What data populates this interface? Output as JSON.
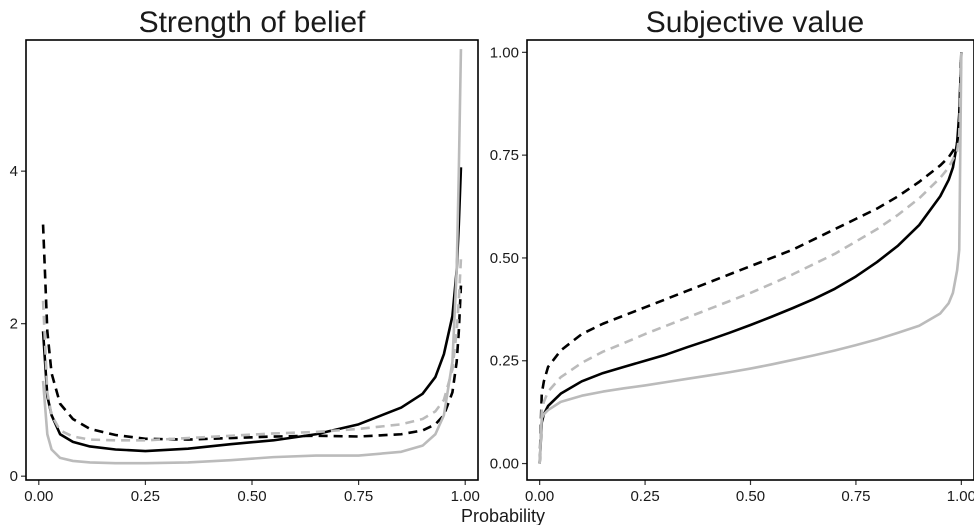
{
  "xlabel": "Probability",
  "chart_data": [
    {
      "type": "line",
      "title": "Strength of belief",
      "xlabel": "",
      "ylabel": "",
      "xlim": [
        -0.03,
        1.03
      ],
      "ylim": [
        -0.05,
        5.72
      ],
      "x_ticks": [
        0.0,
        0.25,
        0.5,
        0.75,
        1.0
      ],
      "x_tick_labels": [
        "0.00",
        "0.25",
        "0.50",
        "0.75",
        "1.00"
      ],
      "y_ticks": [
        0,
        2,
        4
      ],
      "y_tick_labels": [
        "0",
        "2",
        "4"
      ],
      "grid": false,
      "legend": "none",
      "series": [
        {
          "style": {
            "color": "#000000",
            "dash": "solid"
          },
          "x": [
            0.01,
            0.02,
            0.03,
            0.05,
            0.08,
            0.12,
            0.18,
            0.25,
            0.35,
            0.45,
            0.55,
            0.65,
            0.75,
            0.85,
            0.9,
            0.93,
            0.95,
            0.97,
            0.98,
            0.985,
            0.99
          ],
          "y": [
            1.9,
            1.05,
            0.8,
            0.55,
            0.45,
            0.39,
            0.35,
            0.33,
            0.36,
            0.42,
            0.47,
            0.55,
            0.68,
            0.9,
            1.08,
            1.3,
            1.6,
            2.1,
            2.7,
            3.3,
            4.05
          ]
        },
        {
          "style": {
            "color": "#000000",
            "dash": "dashed"
          },
          "x": [
            0.01,
            0.02,
            0.03,
            0.05,
            0.08,
            0.12,
            0.18,
            0.25,
            0.35,
            0.45,
            0.55,
            0.65,
            0.75,
            0.85,
            0.9,
            0.93,
            0.95,
            0.97,
            0.98,
            0.985,
            0.99
          ],
          "y": [
            3.3,
            1.9,
            1.35,
            0.95,
            0.75,
            0.62,
            0.54,
            0.49,
            0.48,
            0.5,
            0.52,
            0.53,
            0.52,
            0.55,
            0.6,
            0.68,
            0.8,
            1.1,
            1.5,
            1.9,
            2.5
          ]
        },
        {
          "style": {
            "color": "#bbbbbb",
            "dash": "solid"
          },
          "x": [
            0.01,
            0.02,
            0.03,
            0.05,
            0.08,
            0.12,
            0.18,
            0.25,
            0.35,
            0.45,
            0.55,
            0.65,
            0.75,
            0.85,
            0.9,
            0.93,
            0.95,
            0.97,
            0.98,
            0.985,
            0.99
          ],
          "y": [
            1.25,
            0.55,
            0.35,
            0.24,
            0.2,
            0.18,
            0.17,
            0.17,
            0.18,
            0.21,
            0.25,
            0.27,
            0.27,
            0.32,
            0.4,
            0.55,
            0.8,
            1.5,
            2.7,
            4.0,
            5.6
          ]
        },
        {
          "style": {
            "color": "#bbbbbb",
            "dash": "dashed"
          },
          "x": [
            0.01,
            0.02,
            0.03,
            0.05,
            0.08,
            0.12,
            0.18,
            0.25,
            0.35,
            0.45,
            0.55,
            0.65,
            0.75,
            0.85,
            0.9,
            0.93,
            0.95,
            0.97,
            0.98,
            0.985,
            0.99
          ],
          "y": [
            2.3,
            1.1,
            0.8,
            0.6,
            0.52,
            0.48,
            0.47,
            0.47,
            0.5,
            0.53,
            0.56,
            0.58,
            0.62,
            0.68,
            0.75,
            0.85,
            1.0,
            1.4,
            1.9,
            2.3,
            2.85
          ]
        }
      ]
    },
    {
      "type": "line",
      "title": "Subjective value",
      "xlabel": "",
      "ylabel": "",
      "xlim": [
        -0.03,
        1.03
      ],
      "ylim": [
        -0.04,
        1.03
      ],
      "x_ticks": [
        0.0,
        0.25,
        0.5,
        0.75,
        1.0
      ],
      "x_tick_labels": [
        "0.00",
        "0.25",
        "0.50",
        "0.75",
        "1.00"
      ],
      "y_ticks": [
        0.0,
        0.25,
        0.5,
        0.75,
        1.0
      ],
      "y_tick_labels": [
        "0.00",
        "0.25",
        "0.50",
        "0.75",
        "1.00"
      ],
      "grid": false,
      "legend": "none",
      "series": [
        {
          "style": {
            "color": "#000000",
            "dash": "solid"
          },
          "x": [
            0.0,
            0.005,
            0.01,
            0.02,
            0.05,
            0.1,
            0.15,
            0.2,
            0.25,
            0.3,
            0.35,
            0.4,
            0.45,
            0.5,
            0.55,
            0.6,
            0.65,
            0.7,
            0.75,
            0.8,
            0.85,
            0.9,
            0.95,
            0.97,
            0.98,
            0.99,
            0.995,
            1.0
          ],
          "y": [
            0.0,
            0.1,
            0.12,
            0.14,
            0.17,
            0.2,
            0.22,
            0.235,
            0.25,
            0.265,
            0.283,
            0.3,
            0.318,
            0.337,
            0.357,
            0.378,
            0.4,
            0.425,
            0.455,
            0.49,
            0.53,
            0.58,
            0.65,
            0.69,
            0.72,
            0.78,
            0.85,
            1.0
          ]
        },
        {
          "style": {
            "color": "#000000",
            "dash": "dashed"
          },
          "x": [
            0.0,
            0.005,
            0.01,
            0.02,
            0.05,
            0.1,
            0.15,
            0.2,
            0.25,
            0.3,
            0.35,
            0.4,
            0.45,
            0.5,
            0.55,
            0.6,
            0.65,
            0.7,
            0.75,
            0.8,
            0.85,
            0.9,
            0.95,
            0.97,
            0.98,
            0.99,
            0.995,
            1.0
          ],
          "y": [
            0.0,
            0.17,
            0.2,
            0.235,
            0.275,
            0.315,
            0.34,
            0.36,
            0.38,
            0.4,
            0.42,
            0.44,
            0.46,
            0.48,
            0.5,
            0.52,
            0.545,
            0.57,
            0.595,
            0.62,
            0.65,
            0.685,
            0.725,
            0.745,
            0.76,
            0.78,
            0.82,
            1.0
          ]
        },
        {
          "style": {
            "color": "#bbbbbb",
            "dash": "solid"
          },
          "x": [
            0.0,
            0.005,
            0.01,
            0.02,
            0.05,
            0.1,
            0.15,
            0.2,
            0.25,
            0.3,
            0.35,
            0.4,
            0.45,
            0.5,
            0.55,
            0.6,
            0.65,
            0.7,
            0.75,
            0.8,
            0.85,
            0.9,
            0.95,
            0.97,
            0.98,
            0.99,
            0.995,
            1.0
          ],
          "y": [
            0.0,
            0.11,
            0.12,
            0.13,
            0.15,
            0.165,
            0.175,
            0.183,
            0.19,
            0.198,
            0.206,
            0.214,
            0.222,
            0.231,
            0.241,
            0.252,
            0.263,
            0.275,
            0.288,
            0.302,
            0.318,
            0.335,
            0.365,
            0.39,
            0.415,
            0.47,
            0.52,
            1.0
          ]
        },
        {
          "style": {
            "color": "#bbbbbb",
            "dash": "dashed"
          },
          "x": [
            0.0,
            0.005,
            0.01,
            0.02,
            0.05,
            0.1,
            0.15,
            0.2,
            0.25,
            0.3,
            0.35,
            0.4,
            0.45,
            0.5,
            0.55,
            0.6,
            0.65,
            0.7,
            0.75,
            0.8,
            0.85,
            0.9,
            0.95,
            0.97,
            0.98,
            0.99,
            0.995,
            1.0
          ],
          "y": [
            0.0,
            0.13,
            0.15,
            0.175,
            0.21,
            0.245,
            0.272,
            0.293,
            0.315,
            0.335,
            0.355,
            0.375,
            0.395,
            0.415,
            0.437,
            0.46,
            0.485,
            0.51,
            0.54,
            0.57,
            0.605,
            0.645,
            0.695,
            0.72,
            0.74,
            0.76,
            0.8,
            1.0
          ]
        }
      ]
    }
  ]
}
